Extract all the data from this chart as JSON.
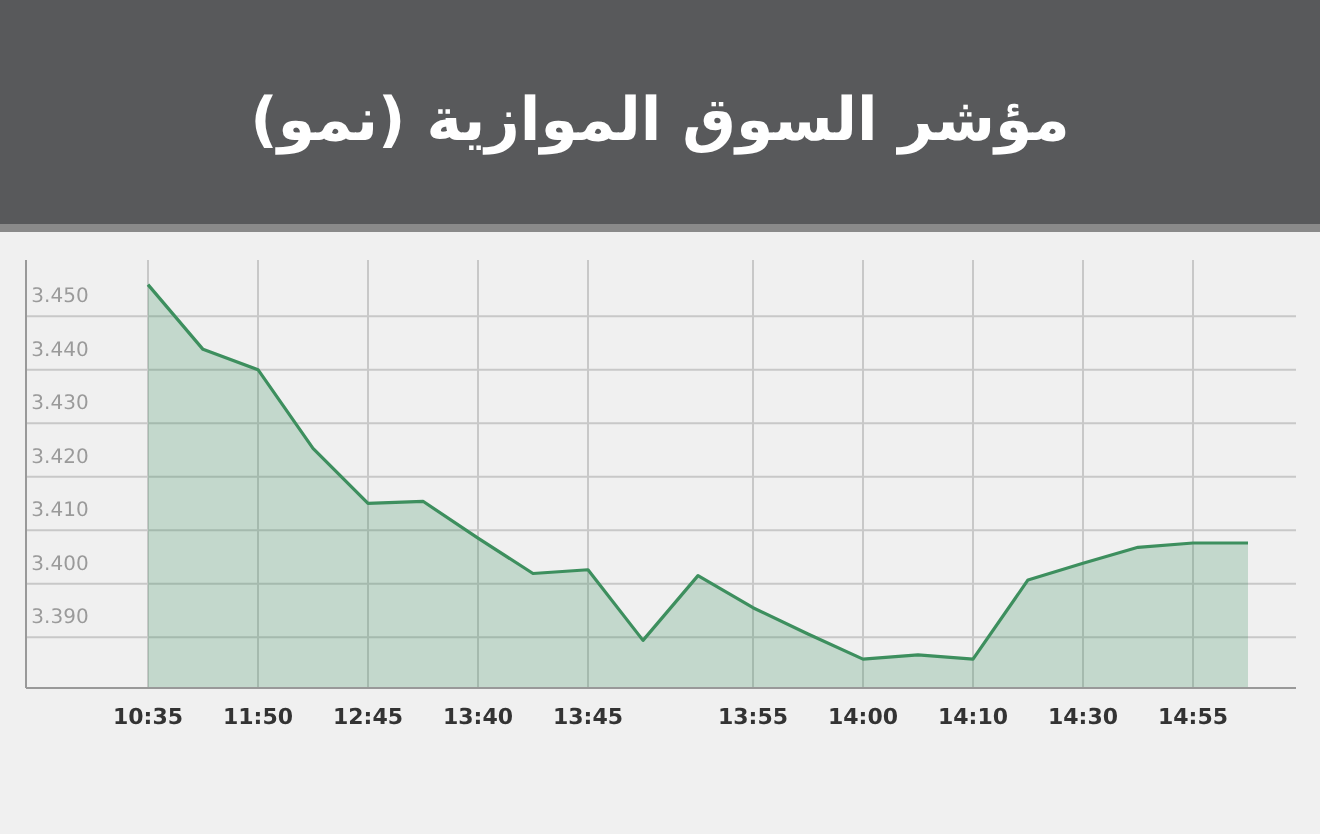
{
  "chart_data": {
    "type": "area",
    "title": "مؤشر السوق الموازية (نمو)",
    "categories": [
      "10:35",
      null,
      "11:50",
      null,
      "12:45",
      null,
      "13:40",
      null,
      "13:45",
      null,
      null,
      "13:55",
      null,
      "14:00",
      null,
      "14:10",
      null,
      "14:30",
      null,
      "14:55",
      null
    ],
    "values": [
      3.4559,
      3.4438,
      3.44,
      3.4253,
      3.415,
      3.4154,
      3.4085,
      3.4019,
      3.4026,
      3.3894,
      3.4015,
      3.3955,
      3.3906,
      3.3859,
      3.3867,
      3.3859,
      3.4007,
      3.4038,
      3.4068,
      3.4076,
      3.4076
    ],
    "color": "#3d8f5e",
    "ylim": [
      3.3805,
      3.4605
    ],
    "yticks": [
      {
        "value": 3.39,
        "label": "3.390"
      },
      {
        "value": 3.4,
        "label": "3.400"
      },
      {
        "value": 3.41,
        "label": "3.410"
      },
      {
        "value": 3.42,
        "label": "3.420"
      },
      {
        "value": 3.43,
        "label": "3.430"
      },
      {
        "value": 3.44,
        "label": "3.440"
      },
      {
        "value": 3.45,
        "label": "3.450"
      }
    ],
    "grid": true
  }
}
